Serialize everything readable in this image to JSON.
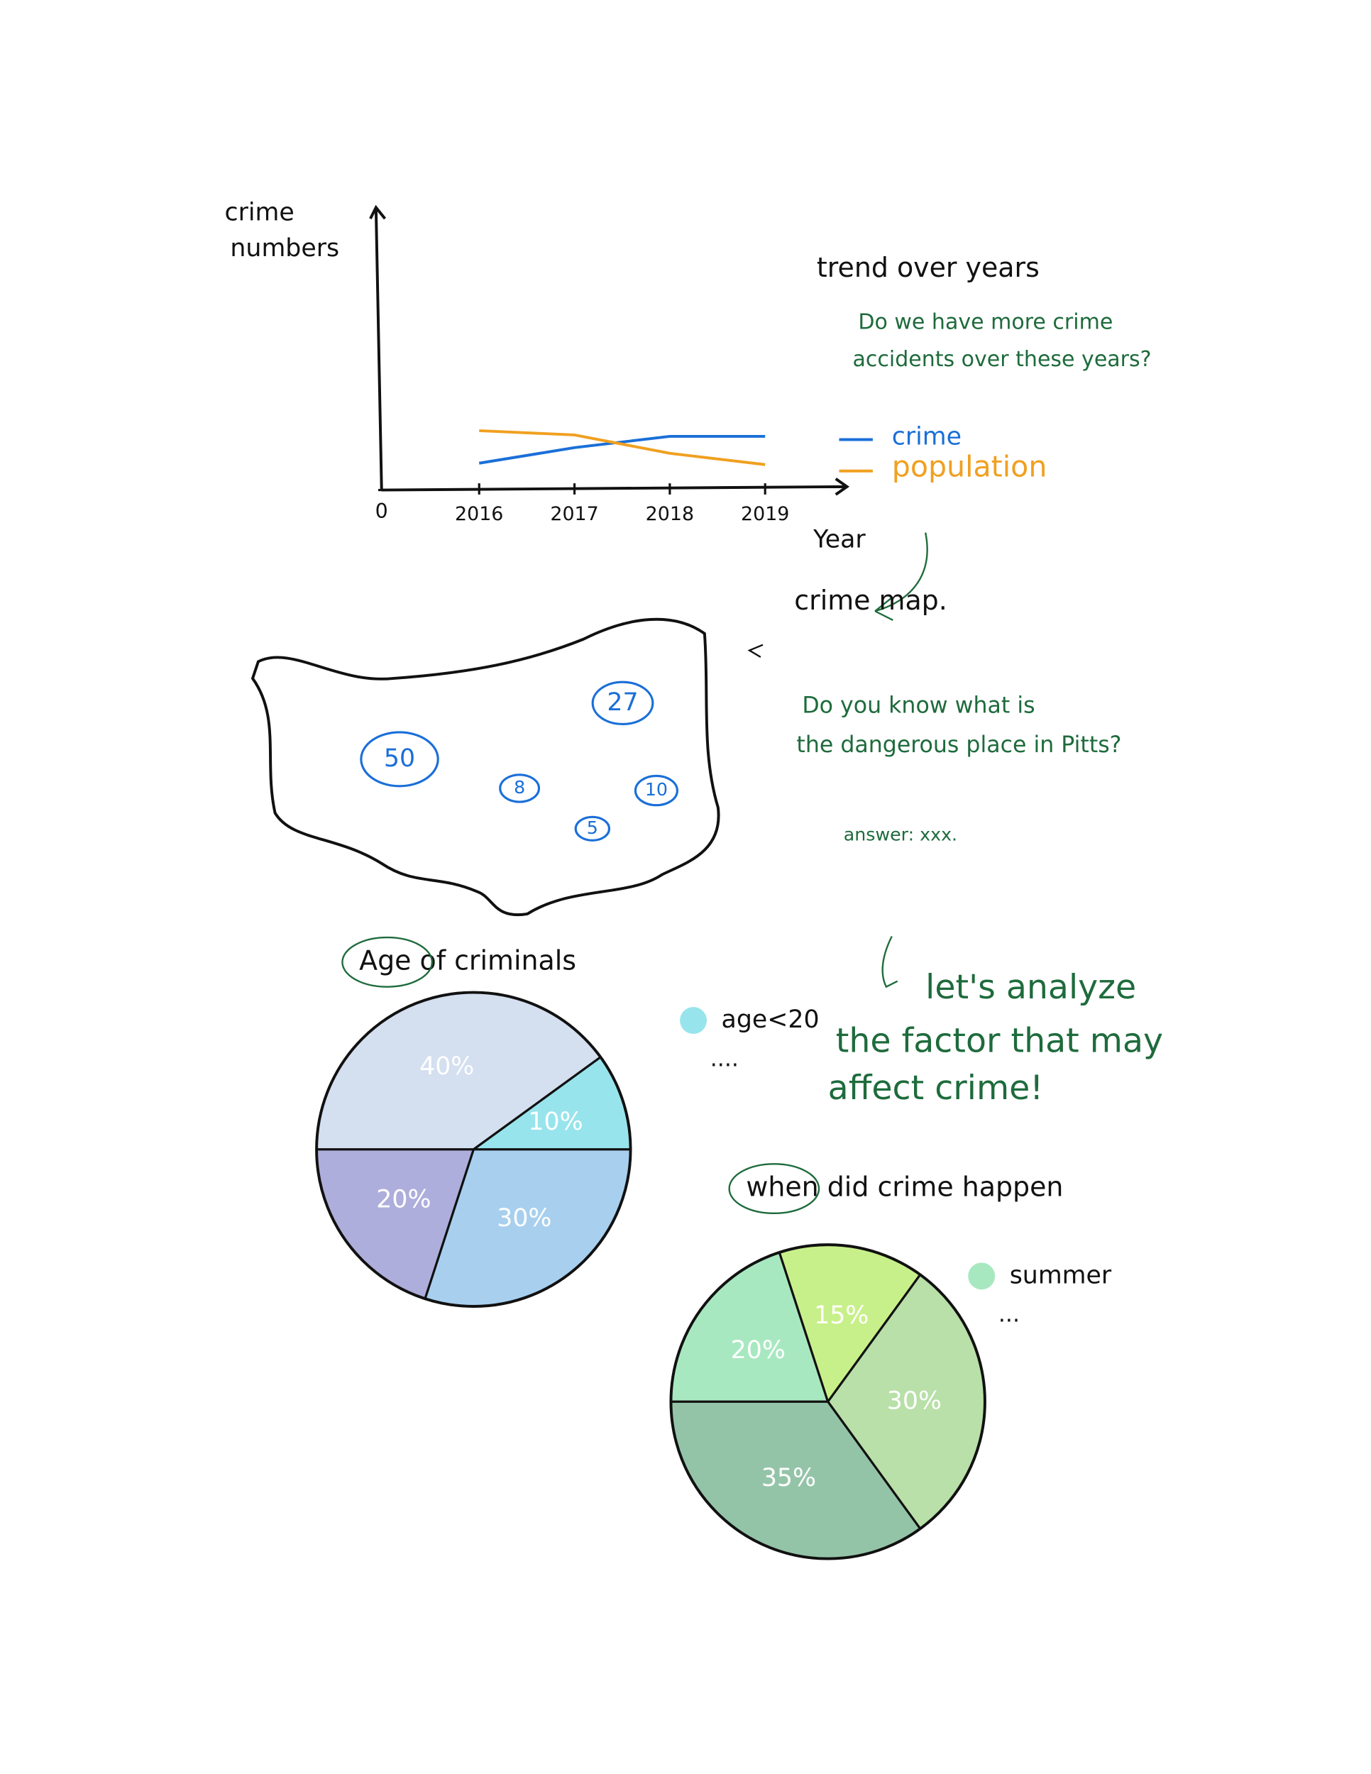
{
  "chart_data": [
    {
      "type": "line",
      "title": "trend over years",
      "subtitle": [
        "Do we have more crime",
        "accidents over these years?"
      ],
      "y_label": [
        "crime",
        "numbers"
      ],
      "x_label": "Year",
      "categories": [
        "2016",
        "2017",
        "2018",
        "2019"
      ],
      "ylim": [
        0,
        100
      ],
      "yticks": [
        0
      ],
      "series": [
        {
          "name": "crime",
          "color": "#1a6fd8",
          "values": [
            9.5,
            15,
            19,
            19
          ]
        },
        {
          "name": "population",
          "color": "#f0a020",
          "values": [
            21,
            19.5,
            13,
            9
          ]
        }
      ]
    },
    {
      "type": "pie",
      "title": "Age of criminals",
      "categories": [
        null,
        "age<20",
        null,
        null
      ],
      "values": [
        40,
        10,
        30,
        20
      ],
      "value_labels": [
        "40%",
        "10%",
        "30%",
        "20%"
      ],
      "colors": [
        "#d4dff0",
        "#98e4ec",
        "#a8cfee",
        "#aeaedc"
      ],
      "legend_more": "...."
    },
    {
      "type": "pie",
      "title": "when did crime happen",
      "categories": [
        "summer",
        null,
        null,
        null
      ],
      "values": [
        20,
        15,
        30,
        35
      ],
      "value_labels": [
        "20%",
        "15%",
        "30%",
        "35%"
      ],
      "colors": [
        "#a8e8c0",
        "#c8f08a",
        "#b8e0a8",
        "#94c4a8"
      ],
      "legend_more": "..."
    }
  ],
  "map": {
    "title": "crime map.",
    "question": [
      "Do you know what is",
      "the dangerous place in Pitts?"
    ],
    "answer": "answer: xxx.",
    "values": [
      50,
      27,
      8,
      10,
      5
    ]
  },
  "note": [
    "let's analyze",
    "the factor that may",
    "affect crime!"
  ]
}
